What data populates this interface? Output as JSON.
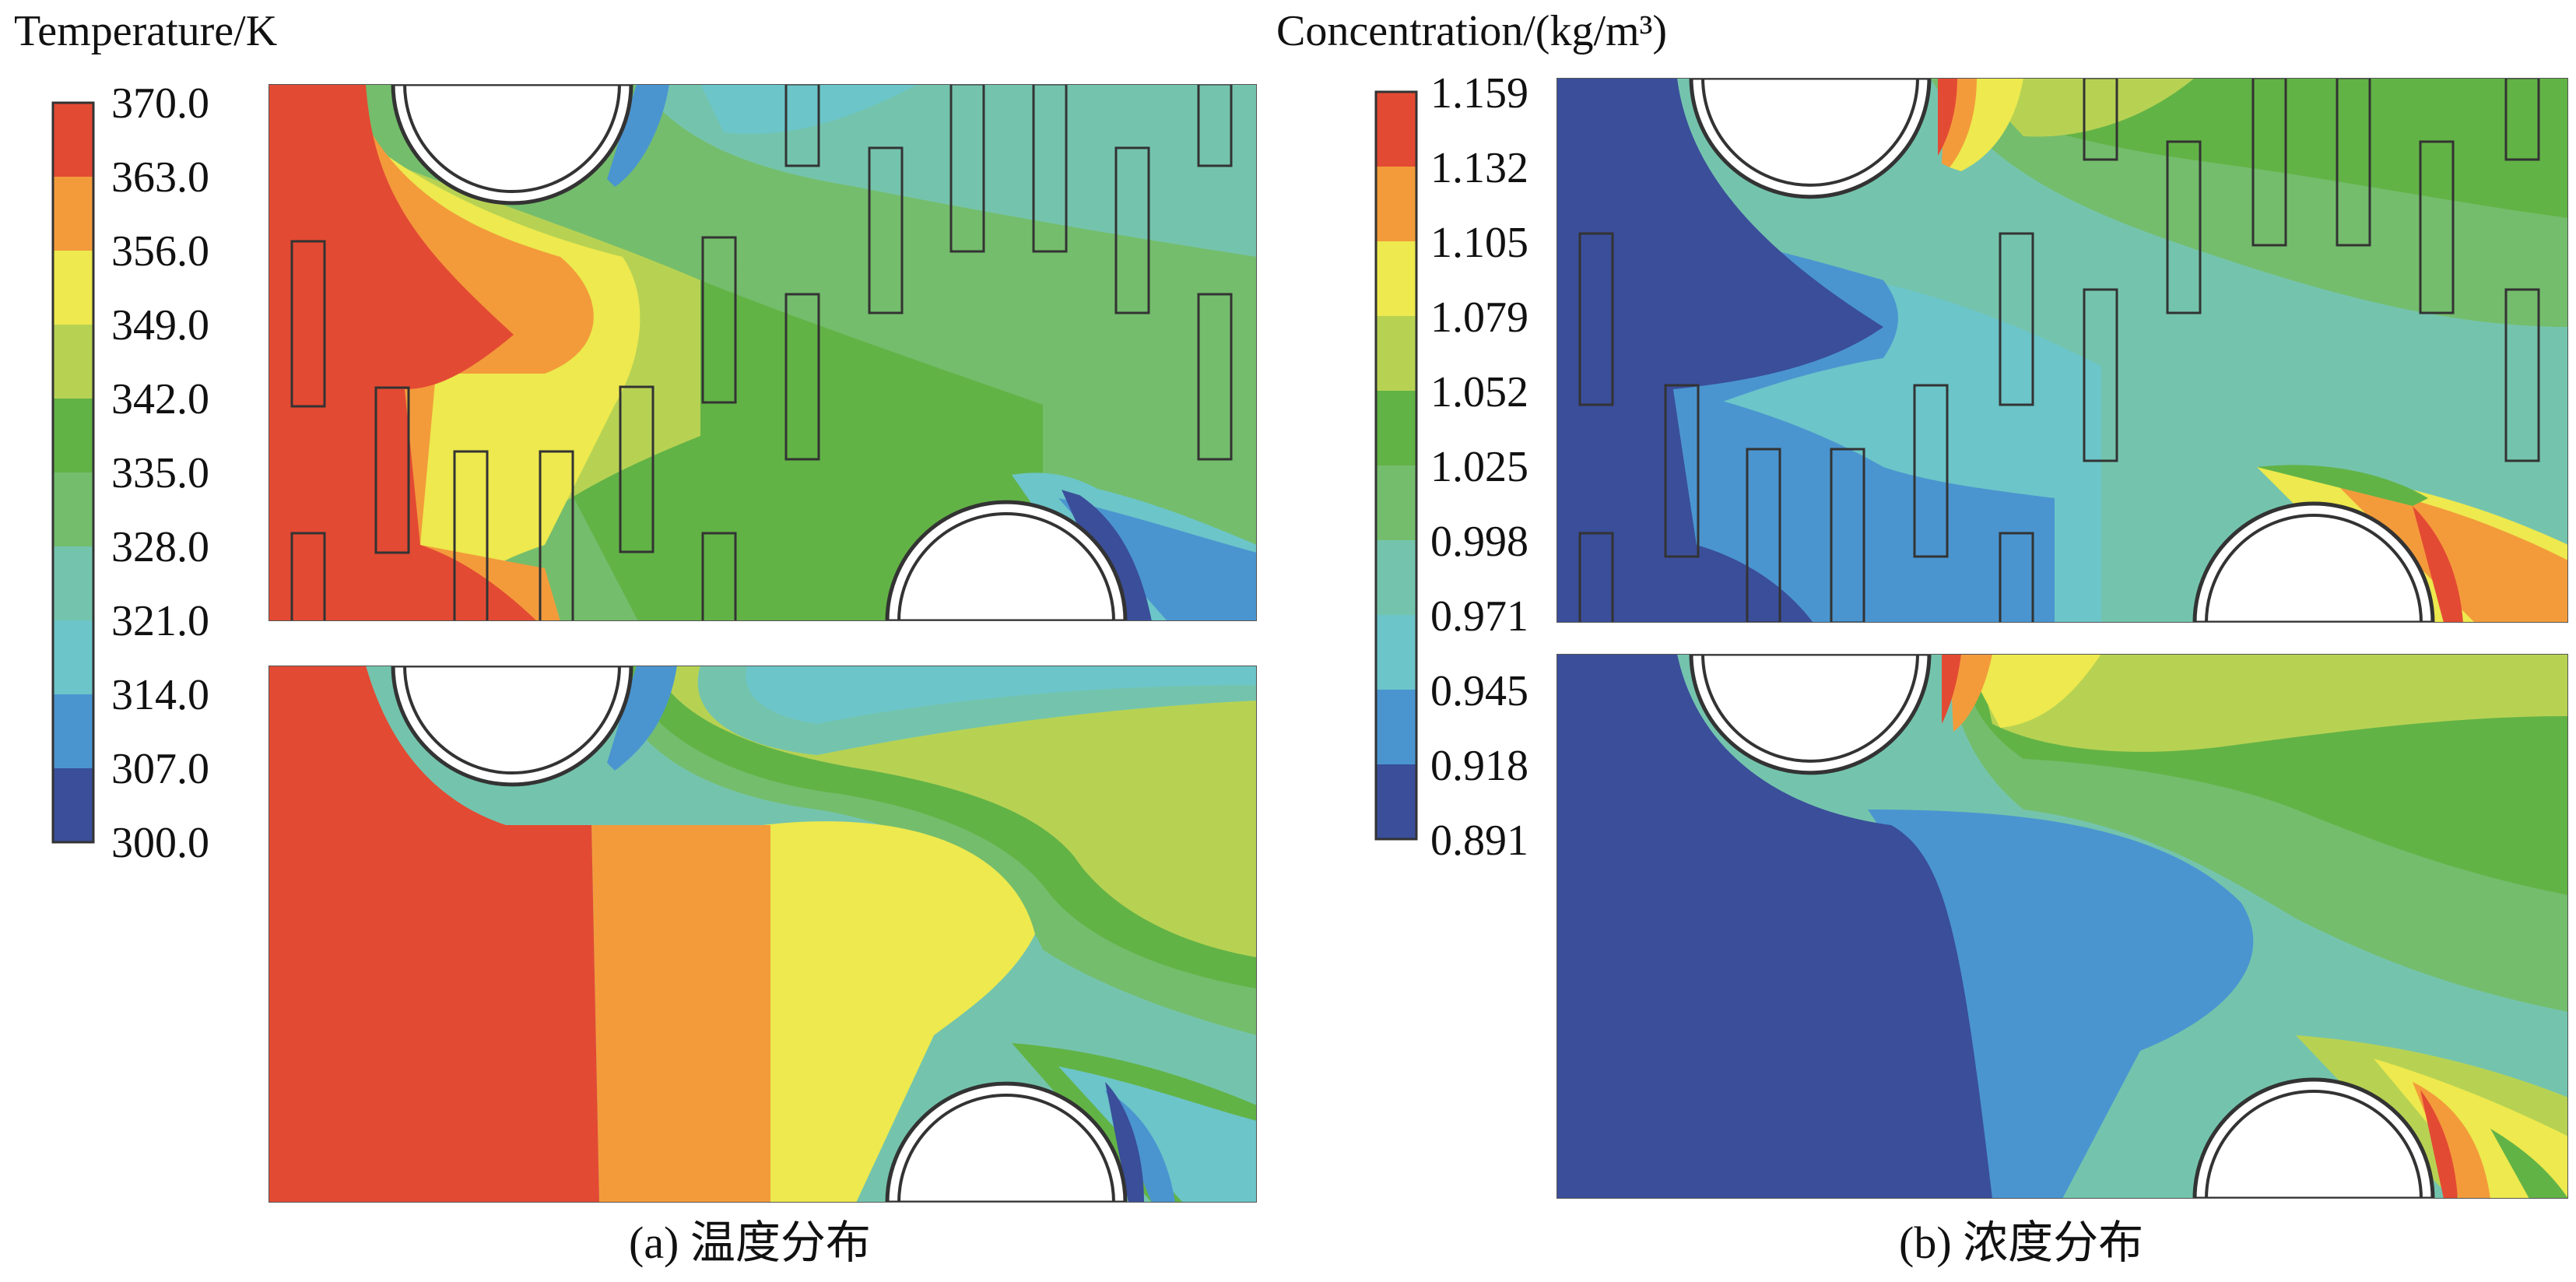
{
  "temperature": {
    "legend_title": "Temperature/K",
    "ticks": [
      "370.0",
      "363.0",
      "356.0",
      "349.0",
      "342.0",
      "335.0",
      "328.0",
      "321.0",
      "314.0",
      "307.0",
      "300.0"
    ],
    "colors": [
      "#e34a33",
      "#f39b3b",
      "#ede94e",
      "#b7d253",
      "#62b346",
      "#74bd6c",
      "#74c4ad",
      "#6cc5c8",
      "#4a95d0",
      "#3a4e9a"
    ],
    "caption": "(a) 温度分布"
  },
  "concentration": {
    "legend_title": "Concentration/(kg/m³)",
    "ticks": [
      "1.159",
      "1.132",
      "1.105",
      "1.079",
      "1.052",
      "1.025",
      "0.998",
      "0.971",
      "0.945",
      "0.918",
      "0.891"
    ],
    "colors": [
      "#e34a33",
      "#f39b3b",
      "#ede94e",
      "#b7d253",
      "#62b346",
      "#74bd6c",
      "#74c4ad",
      "#6cc5c8",
      "#4a95d0",
      "#3a4e9a"
    ],
    "caption": "(b) 浓度分布"
  }
}
